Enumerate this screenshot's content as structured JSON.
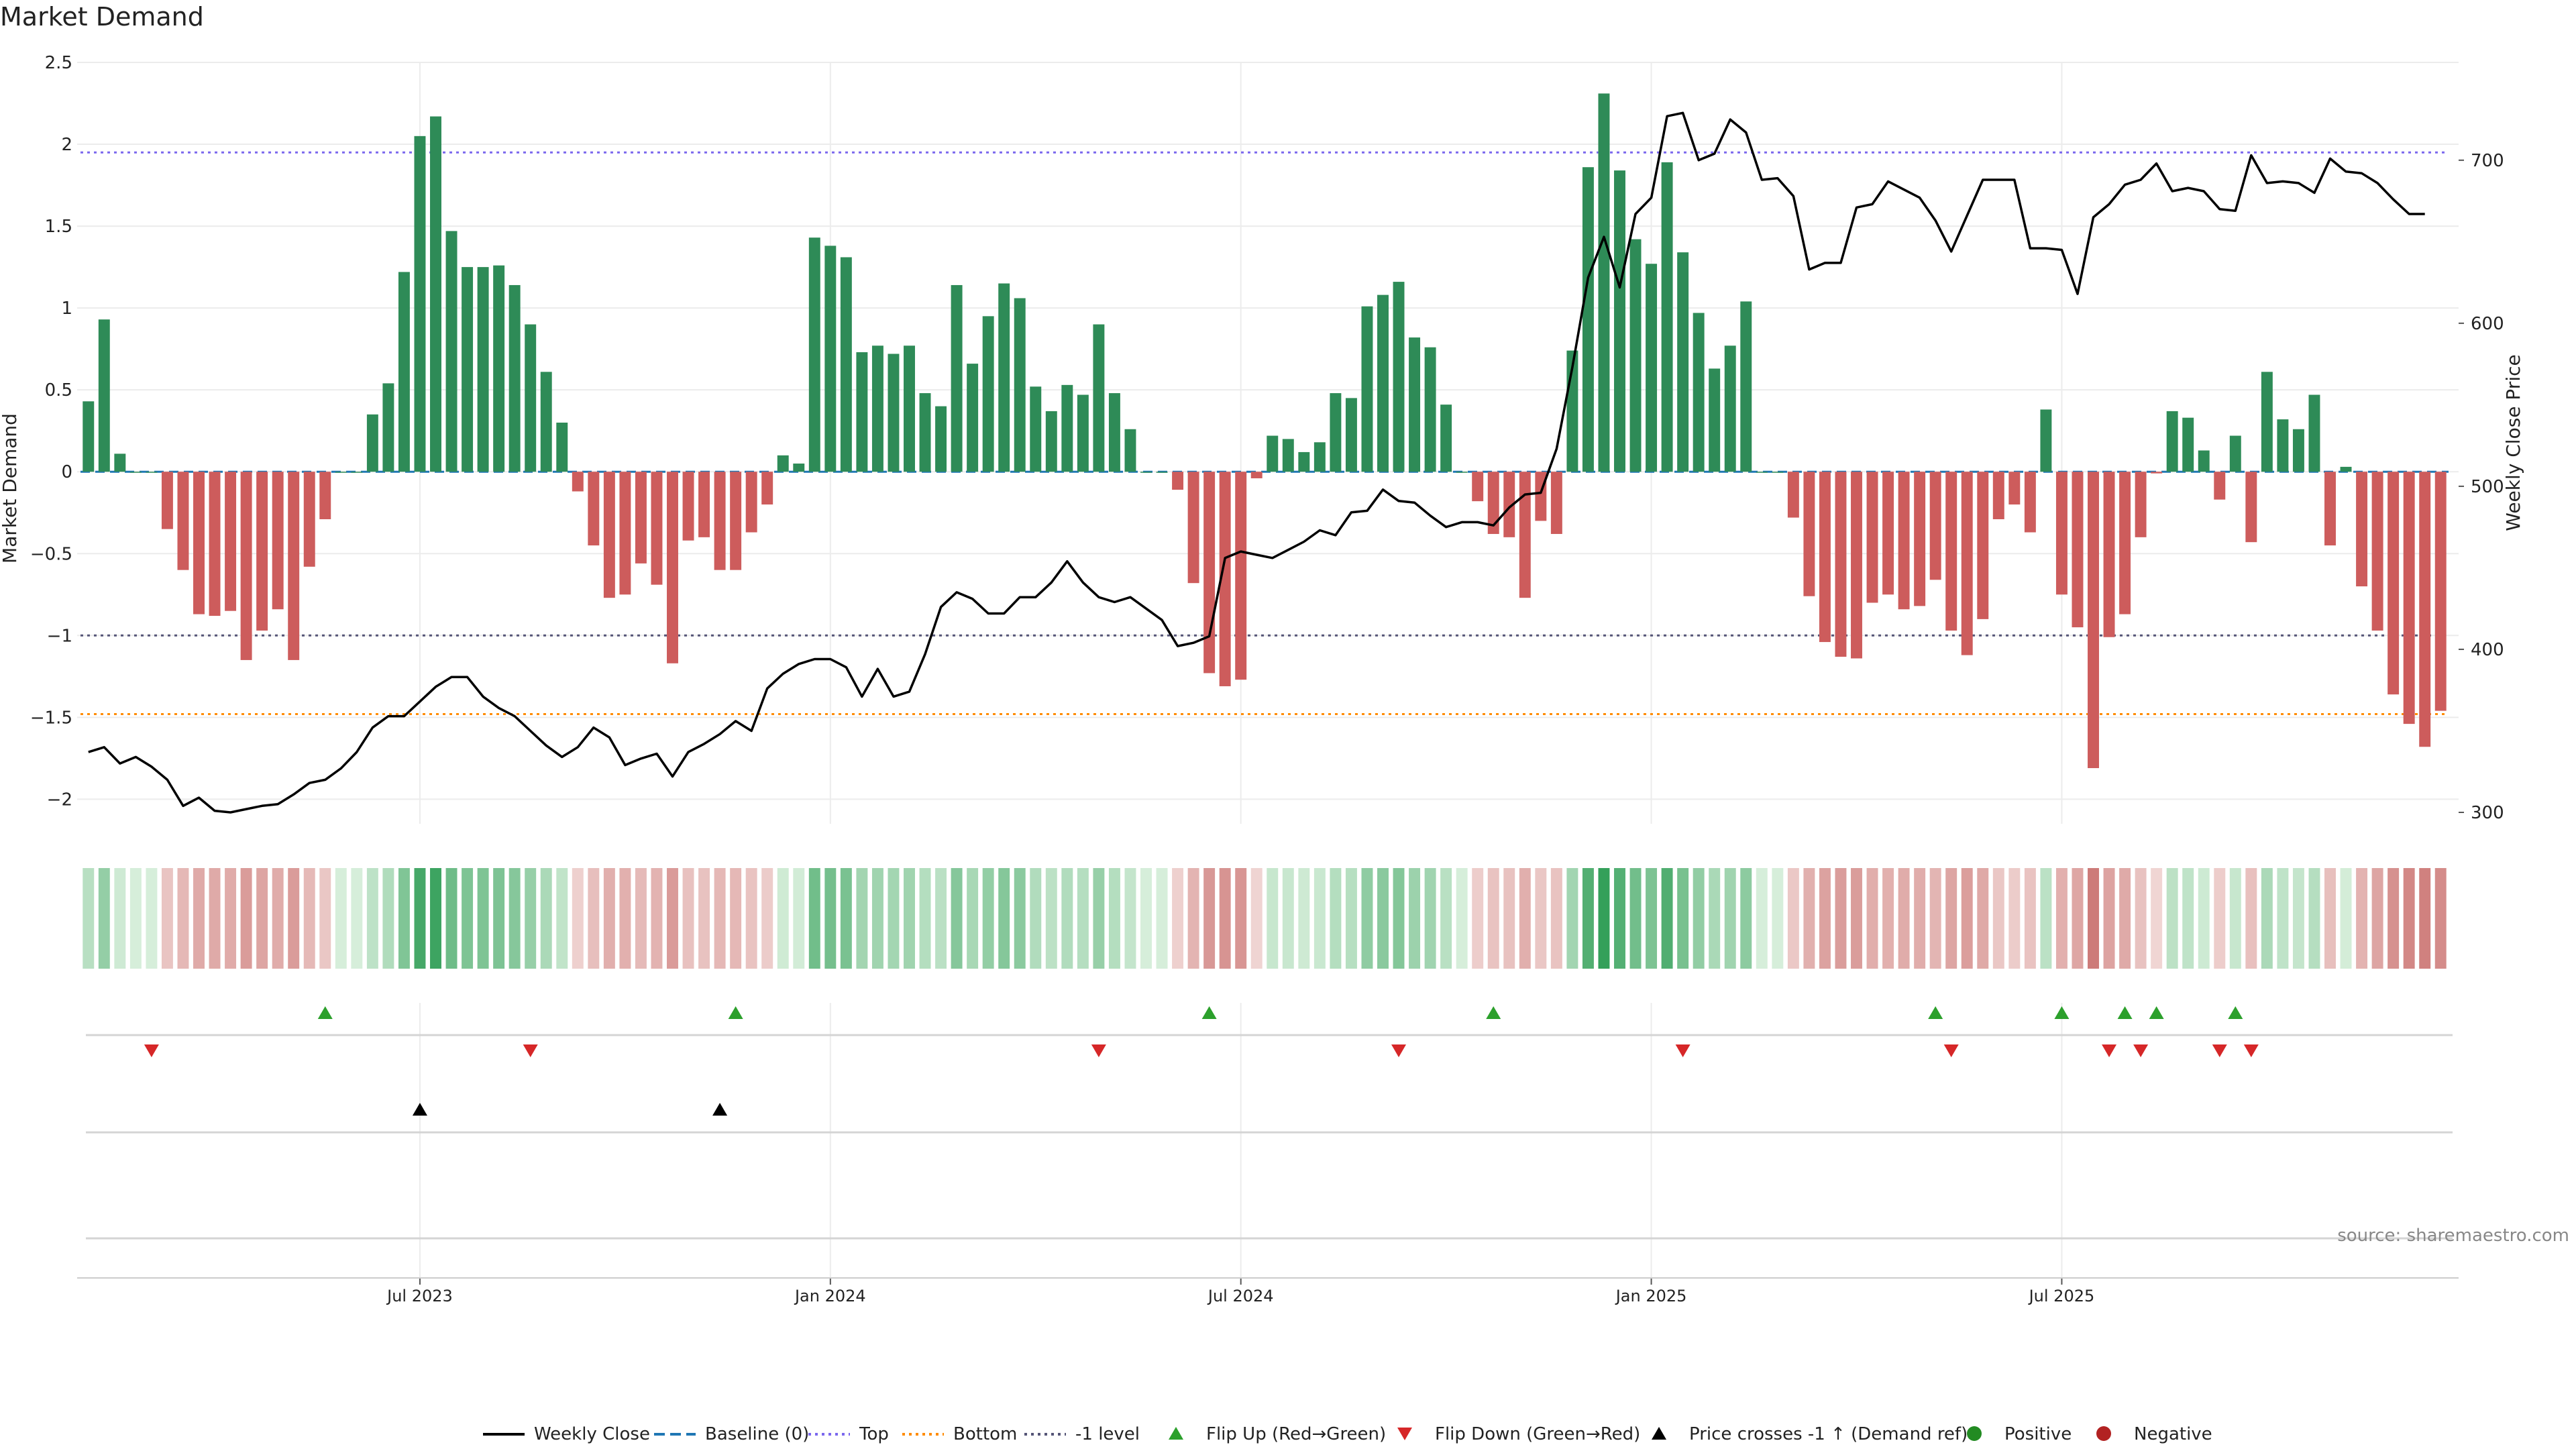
{
  "chart_data": {
    "type": "bar",
    "title": "Market Demand",
    "ylabel": "Market Demand",
    "y2label": "Weekly Close Price",
    "ylim": [
      -2.15,
      2.5
    ],
    "y2lim": [
      293,
      760
    ],
    "y_ticks": [
      2.5,
      2,
      1.5,
      1,
      0.5,
      0,
      -0.5,
      -1,
      -1.5,
      -2
    ],
    "y_tick_labels": [
      "2.5",
      "2",
      "1.5",
      "1",
      "0.5",
      "0",
      "−0.5",
      "−1",
      "−1.5",
      "−2"
    ],
    "y2_ticks": [
      700,
      600,
      500,
      400,
      300
    ],
    "y2_tick_labels": [
      "700",
      "600",
      "500",
      "400",
      "300"
    ],
    "x_ticks": [
      {
        "week": 21,
        "label": "Jul 2023"
      },
      {
        "week": 47,
        "label": "Jan 2024"
      },
      {
        "week": 73,
        "label": "Jul 2024"
      },
      {
        "week": 99,
        "label": "Jan 2025"
      },
      {
        "week": 125,
        "label": "Jul 2025"
      }
    ],
    "reference_lines": {
      "baseline": 0,
      "top": 1.95,
      "bottom": -1.48,
      "minus_one_level": -1.0
    },
    "colors": {
      "positive": "#2e8b57",
      "negative": "#cd5c5c",
      "price": "#000000",
      "baseline": "#1f77b4",
      "top": "#7b68ee",
      "bottom": "#ff8c00",
      "minus_one": "#555577",
      "flip_up": "#2ca02c",
      "flip_down": "#d62728",
      "crosses": "#000000"
    },
    "demand": [
      0.43,
      0.93,
      0.11,
      0,
      0,
      -0.35,
      -0.6,
      -0.87,
      -0.88,
      -0.85,
      -1.15,
      -0.97,
      -0.84,
      -1.15,
      -0.58,
      -0.29,
      0,
      0,
      0.35,
      0.54,
      1.22,
      2.05,
      2.17,
      1.47,
      1.25,
      1.25,
      1.26,
      1.14,
      0.9,
      0.61,
      0.3,
      -0.12,
      -0.45,
      -0.77,
      -0.75,
      -0.56,
      -0.69,
      -1.17,
      -0.42,
      -0.4,
      -0.6,
      -0.6,
      -0.37,
      -0.2,
      0.1,
      0.05,
      1.43,
      1.38,
      1.31,
      0.73,
      0.77,
      0.72,
      0.77,
      0.48,
      0.4,
      1.14,
      0.66,
      0.95,
      1.15,
      1.06,
      0.52,
      0.37,
      0.53,
      0.47,
      0.9,
      0.48,
      0.26,
      0,
      0,
      -0.11,
      -0.68,
      -1.23,
      -1.31,
      -1.27,
      -0.04,
      0.22,
      0.2,
      0.12,
      0.18,
      0.48,
      0.45,
      1.01,
      1.08,
      1.16,
      0.82,
      0.76,
      0.41,
      0,
      -0.18,
      -0.38,
      -0.4,
      -0.77,
      -0.3,
      -0.38,
      0.74,
      1.86,
      2.31,
      1.84,
      1.42,
      1.27,
      1.89,
      1.34,
      0.97,
      0.63,
      0.77,
      1.04,
      0,
      0,
      -0.28,
      -0.76,
      -1.04,
      -1.13,
      -1.14,
      -0.8,
      -0.75,
      -0.84,
      -0.82,
      -0.66,
      -0.97,
      -1.12,
      -0.9,
      -0.29,
      -0.2,
      -0.37,
      0.38,
      -0.75,
      -0.95,
      -1.81,
      -1.01,
      -0.87,
      -0.4,
      -0.01,
      0.37,
      0.33,
      0.13,
      -0.17,
      0.22,
      -0.43,
      0.61,
      0.32,
      0.26,
      0.47,
      -0.45,
      0.03,
      -0.7,
      -0.97,
      -1.36,
      -1.54,
      -1.68,
      -1.46
    ],
    "price": [
      337,
      340,
      330,
      334,
      328,
      320,
      304,
      309,
      301,
      300,
      302,
      304,
      305,
      311,
      318,
      320,
      327,
      337,
      352,
      359,
      359,
      368,
      377,
      383,
      383,
      371,
      364,
      359,
      350,
      341,
      334,
      340,
      352,
      346,
      329,
      333,
      336,
      322,
      337,
      342,
      348,
      356,
      350,
      376,
      385,
      391,
      394,
      394,
      389,
      371,
      388,
      371,
      374,
      397,
      426,
      435,
      431,
      422,
      422,
      432,
      432,
      441,
      454,
      441,
      432,
      429,
      432,
      425,
      418,
      402,
      404,
      408,
      456,
      460,
      458,
      456,
      461,
      466,
      473,
      470,
      484,
      485,
      498,
      491,
      490,
      482,
      475,
      478,
      478,
      476,
      487,
      495,
      496,
      523,
      573,
      628,
      653,
      622,
      667,
      677,
      727,
      729,
      700,
      704,
      725,
      717,
      688,
      689,
      678,
      633,
      637,
      637,
      671,
      673,
      687,
      682,
      677,
      663,
      644,
      666,
      688,
      688,
      688,
      646,
      646,
      645,
      618,
      665,
      673,
      685,
      688,
      698,
      681,
      683,
      681,
      670,
      669,
      703,
      686,
      687,
      686,
      680,
      701,
      693,
      692,
      686,
      676,
      667,
      667
    ],
    "flip_up_weeks": [
      15,
      41,
      71,
      89,
      117,
      125,
      129,
      131,
      136
    ],
    "flip_down_weeks": [
      4,
      28,
      64,
      83,
      101,
      118,
      128,
      130,
      135,
      137
    ],
    "cross_up_weeks": [
      21,
      40
    ],
    "source": "source: sharemaestro.com",
    "legend": [
      {
        "name": "Weekly Close",
        "style": "line"
      },
      {
        "name": "Baseline (0)",
        "style": "dash"
      },
      {
        "name": "Top",
        "style": "dotted"
      },
      {
        "name": "Bottom",
        "style": "dotted"
      },
      {
        "name": "-1 level",
        "style": "dotted"
      },
      {
        "name": "Flip Up (Red→Green)",
        "style": "tri-up"
      },
      {
        "name": "Flip Down (Green→Red)",
        "style": "tri-down"
      },
      {
        "name": "Price crosses -1 ↑ (Demand ref)",
        "style": "tri-up-black"
      },
      {
        "name": "Positive",
        "style": "dot-green"
      },
      {
        "name": "Negative",
        "style": "dot-red"
      }
    ]
  }
}
